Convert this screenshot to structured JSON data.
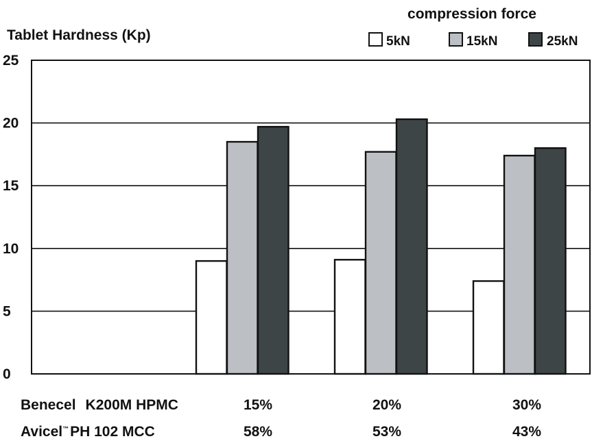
{
  "chart_data": {
    "type": "bar",
    "ylabel": "Tablet Hardness (Kp)",
    "ylim": [
      0,
      25
    ],
    "yticks": [
      0,
      5,
      10,
      15,
      20,
      25
    ],
    "grid": true,
    "legend": {
      "title": "compression force",
      "placement": "top-right"
    },
    "categories": [
      "15%/58%",
      "20%/53%",
      "30%/43%"
    ],
    "series": [
      {
        "name": "5kN",
        "color": "#ffffff",
        "values": [
          9.0,
          9.1,
          7.4
        ]
      },
      {
        "name": "15kN",
        "color": "#bcbfc4",
        "values": [
          18.5,
          17.7,
          17.4
        ]
      },
      {
        "name": "25kN",
        "color": "#3d4547",
        "values": [
          19.7,
          20.3,
          18.0
        ]
      }
    ],
    "category_rows": [
      {
        "label_main": "Benecel",
        "label_rest": "K200M HPMC",
        "values": [
          "15%",
          "20%",
          "30%"
        ]
      },
      {
        "label_main": "Avicel",
        "label_mark": "™",
        "label_rest": "PH 102 MCC",
        "values": [
          "58%",
          "53%",
          "43%"
        ]
      }
    ]
  }
}
